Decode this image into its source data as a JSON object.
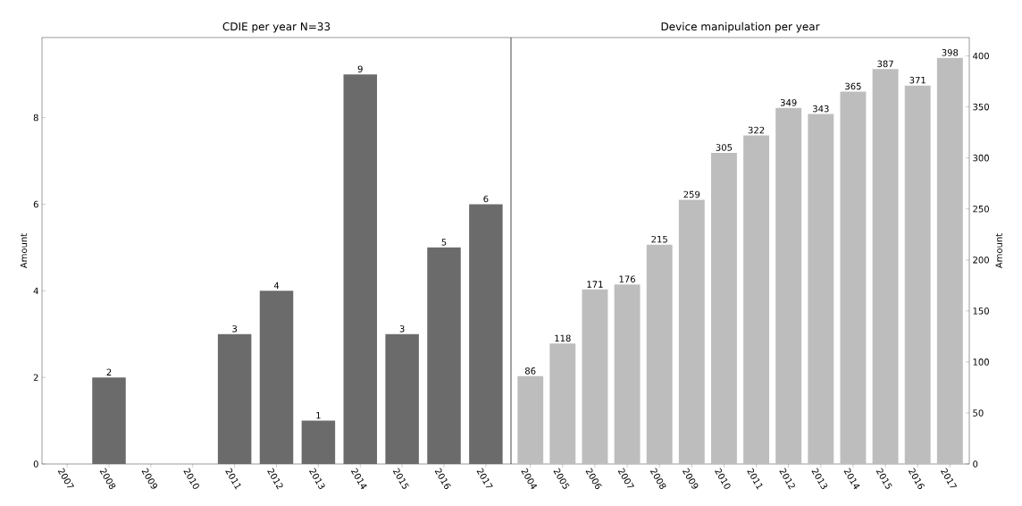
{
  "chart_data": [
    {
      "type": "bar",
      "title": "CDIE per year N=33",
      "ylabel": "Amount",
      "categories": [
        "2007",
        "2008",
        "2009",
        "2010",
        "2011",
        "2012",
        "2013",
        "2014",
        "2015",
        "2016",
        "2017"
      ],
      "values": [
        0,
        2,
        0,
        0,
        3,
        4,
        1,
        9,
        3,
        5,
        6
      ],
      "value_labels": [
        null,
        "2",
        null,
        null,
        "3",
        "4",
        "1",
        "9",
        "3",
        "5",
        "6"
      ],
      "color": "#6b6b6b",
      "ylim": [
        0,
        9.85
      ],
      "yticks": [
        0,
        2,
        4,
        6,
        8
      ]
    },
    {
      "type": "bar",
      "title": "Device manipulation per year",
      "ylabel": "Amount",
      "categories": [
        "2004",
        "2005",
        "2006",
        "2007",
        "2008",
        "2009",
        "2010",
        "2011",
        "2012",
        "2013",
        "2014",
        "2015",
        "2016",
        "2017"
      ],
      "values": [
        86,
        118,
        171,
        176,
        215,
        259,
        305,
        322,
        349,
        343,
        365,
        387,
        371,
        398
      ],
      "color": "#bdbdbd",
      "ylim": [
        0,
        418
      ],
      "yticks": [
        0,
        50,
        100,
        150,
        200,
        250,
        300,
        350,
        400
      ],
      "data_labels": true
    }
  ]
}
